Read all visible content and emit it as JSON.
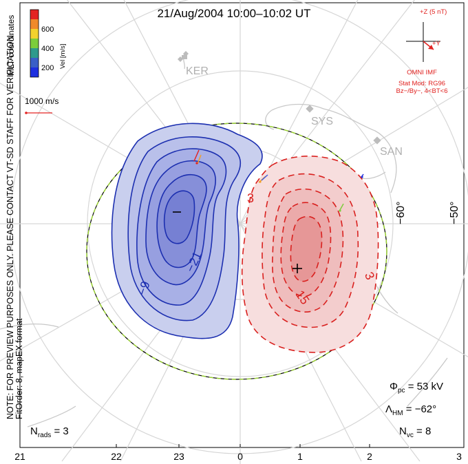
{
  "title": "21/Aug/2004  10:00–10:02  UT",
  "side_note": {
    "line1": "NOTE: FOR PREVIEW PURPOSES ONLY. PLEASE CONTACT VT-SD STAFF FOR VERIFICATION.",
    "line2": "FitOrder: 8, mapEX format"
  },
  "color_scale": {
    "label": "Vel [m/s]",
    "coordinates": "MLT coordinates",
    "ticks": [
      "600",
      "400",
      "200"
    ],
    "colors": [
      "#e32322",
      "#f08a2a",
      "#f2d22e",
      "#7ccd3c",
      "#2f9a8c",
      "#3a5fc7",
      "#1e2fe0"
    ]
  },
  "vector_scale": {
    "label": "1000 m/s",
    "color": "#e32322"
  },
  "imf": {
    "z_label": "+Z (5 nT)",
    "y_label": "+Y",
    "source": "OMNI IMF",
    "model": "Stat Mod: RG96",
    "condition": "Bz−/By−, 4<BT<6",
    "color": "#e32322"
  },
  "stations": [
    "KER",
    "SYS",
    "SAN"
  ],
  "latitude_labels": [
    "−60°",
    "−50°"
  ],
  "contours": {
    "negative_labels": [
      "−9",
      "−21"
    ],
    "positive_labels": [
      "3",
      "15",
      "3"
    ],
    "neg_color": "#1c2fb0",
    "pos_color": "#d9201e",
    "min_marker": "−",
    "max_marker": "+"
  },
  "stats": {
    "phi_symbol": "Φ",
    "phi_sub": "pc",
    "phi_value": " = 53 kV",
    "lambda_symbol": "Λ",
    "lambda_sub": "HM",
    "lambda_value": " = −62°",
    "nvc_symbol": "N",
    "nvc_sub": "vc",
    "nvc_value": " = 8",
    "nrads_symbol": "N",
    "nrads_sub": "rads",
    "nrads_value": " = 3"
  },
  "mlt_ticks": [
    "21",
    "22",
    "23",
    "0",
    "1",
    "2",
    "3"
  ]
}
